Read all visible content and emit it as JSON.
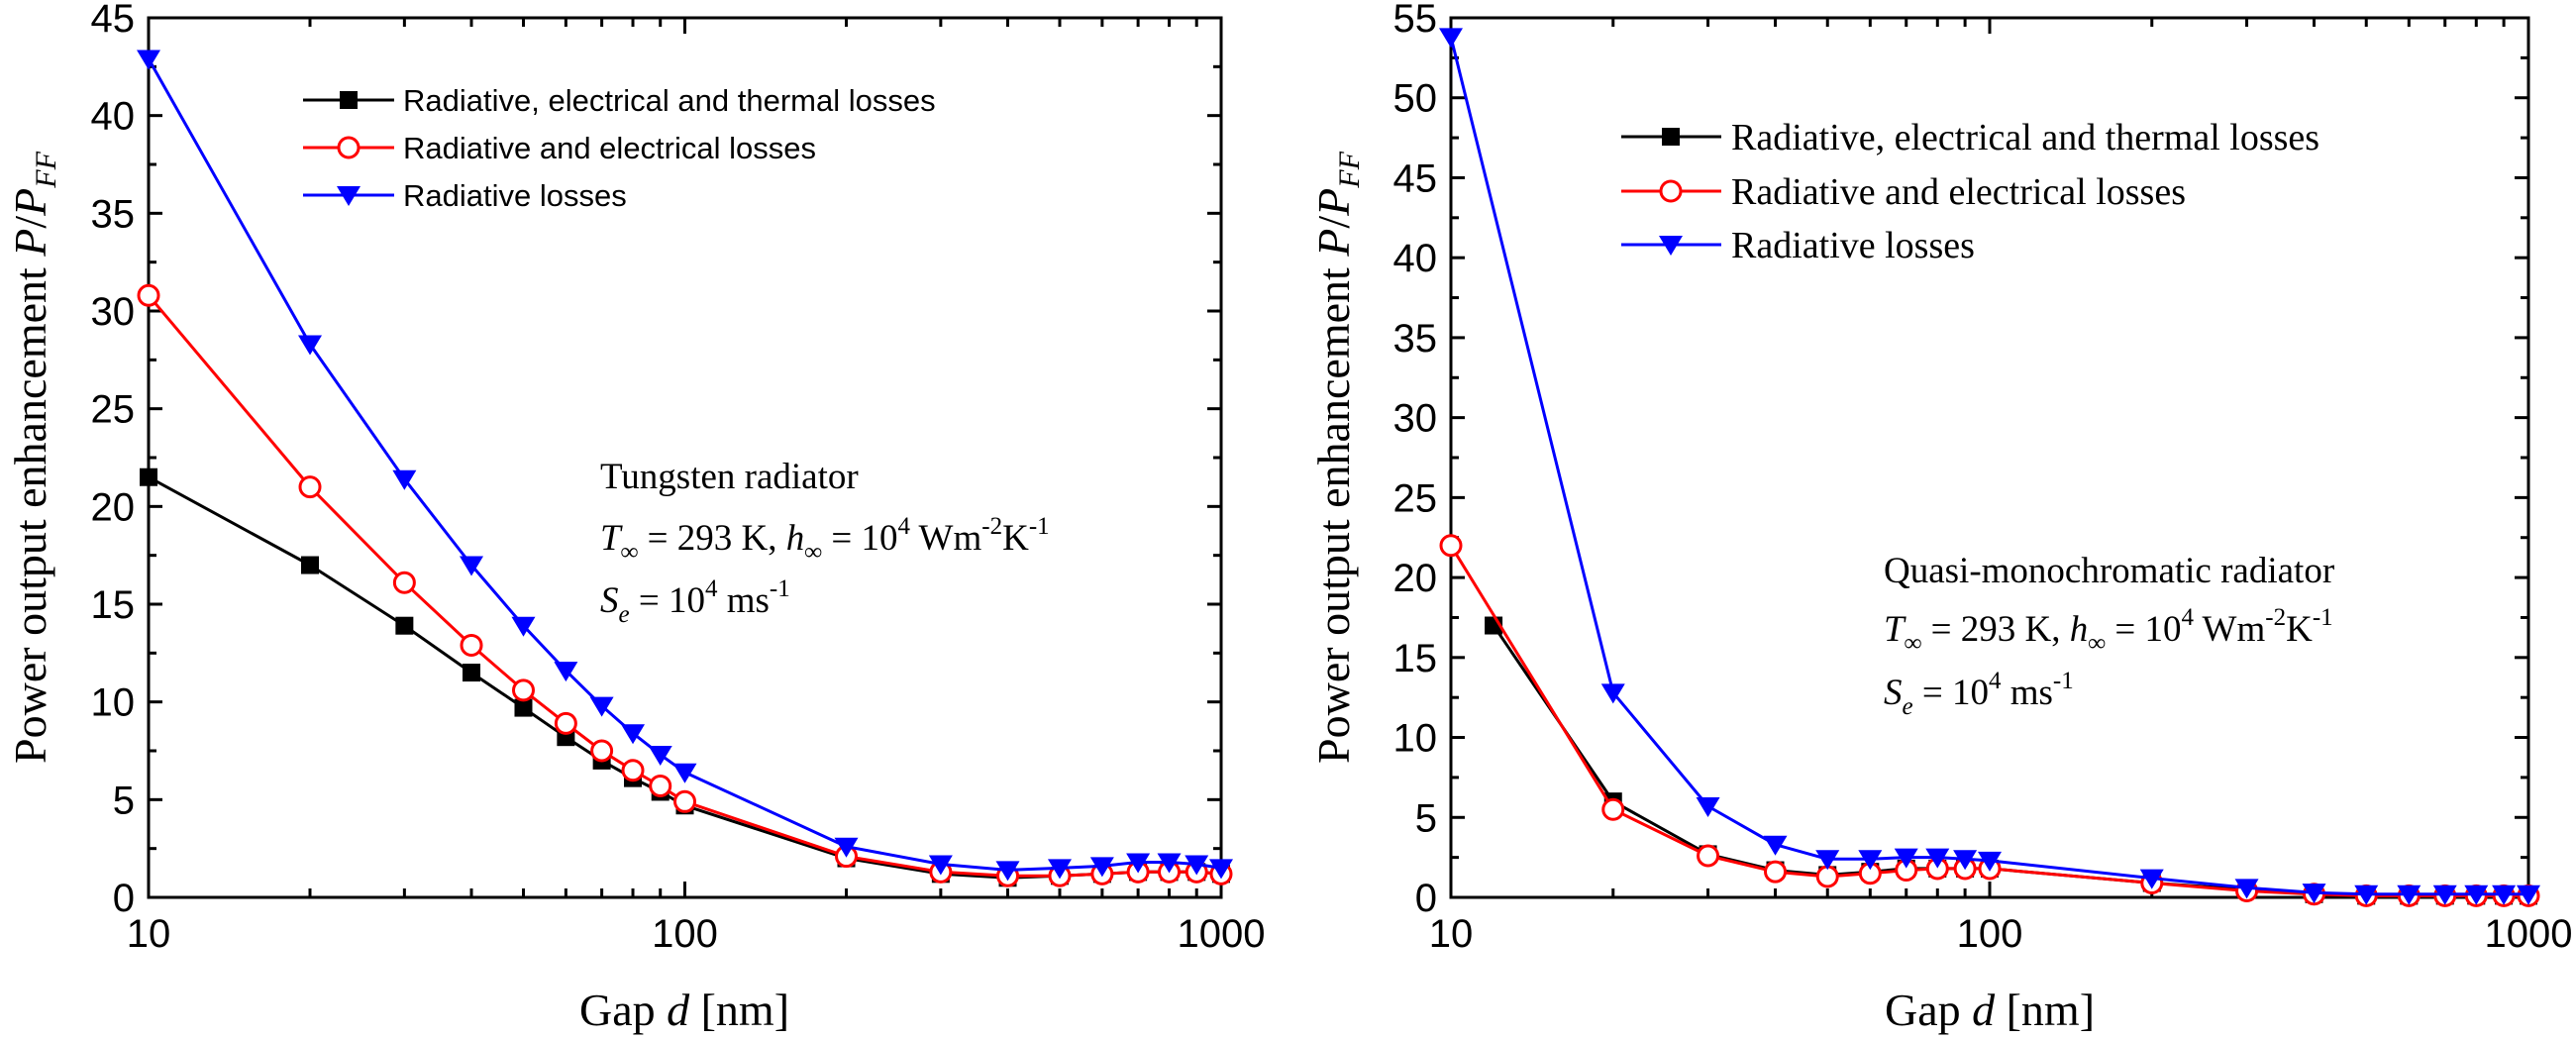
{
  "chart_data": [
    {
      "type": "line",
      "x_scale": "log",
      "xlim": [
        10,
        1000
      ],
      "ylim": [
        0,
        45
      ],
      "x_ticks": [
        "10",
        "100",
        "1000"
      ],
      "y_ticks": [
        "0",
        "5",
        "10",
        "15",
        "20",
        "25",
        "30",
        "35",
        "40",
        "45"
      ],
      "xlabel_pre": "Gap ",
      "xlabel_var": "d",
      "xlabel_post": " [nm]",
      "ylabel_pre": "Power output enhancement ",
      "ylabel_var": "P",
      "ylabel_mid": "/",
      "ylabel_var2": "P",
      "ylabel_sub": "FF",
      "legend_position": "top-left",
      "annotation": {
        "line1": "Tungsten radiator",
        "T": "T",
        "inf_sub": "∞",
        "t_val": " = 293 K, ",
        "h": "h",
        "h_val": " = 10",
        "h_exp": "4",
        "h_unit": " Wm",
        "h_exp2": "-2",
        "h_unit2": "K",
        "h_exp3": "-1",
        "S": "S",
        "S_sub": "e",
        "s_val": " = 10",
        "s_exp": "4",
        "s_unit": " ms",
        "s_exp2": "-1"
      },
      "series": [
        {
          "name": "Radiative, electrical and thermal losses",
          "color": "#000000",
          "marker": "square-filled",
          "x": [
            10,
            20,
            30,
            40,
            50,
            60,
            70,
            80,
            90,
            100,
            200,
            300,
            400,
            500,
            600,
            700,
            800,
            900,
            1000
          ],
          "y": [
            21.5,
            17.0,
            13.9,
            11.5,
            9.7,
            8.2,
            7.0,
            6.1,
            5.4,
            4.7,
            2.0,
            1.2,
            1.0,
            1.1,
            1.2,
            1.3,
            1.3,
            1.3,
            1.2
          ]
        },
        {
          "name": "Radiative and electrical losses",
          "color": "#ff0000",
          "marker": "circle-open",
          "x": [
            10,
            20,
            30,
            40,
            50,
            60,
            70,
            80,
            90,
            100,
            200,
            300,
            400,
            500,
            600,
            700,
            800,
            900,
            1000
          ],
          "y": [
            30.8,
            21.0,
            16.1,
            12.9,
            10.6,
            8.9,
            7.5,
            6.5,
            5.7,
            4.9,
            2.1,
            1.3,
            1.1,
            1.1,
            1.2,
            1.3,
            1.3,
            1.3,
            1.2
          ]
        },
        {
          "name": "Radiative losses",
          "color": "#0000ff",
          "marker": "triangle-down-filled",
          "x": [
            10,
            20,
            30,
            40,
            50,
            60,
            70,
            80,
            90,
            100,
            200,
            300,
            400,
            500,
            600,
            700,
            800,
            900,
            1000
          ],
          "y": [
            42.9,
            28.3,
            21.4,
            17.0,
            13.9,
            11.6,
            9.8,
            8.4,
            7.3,
            6.4,
            2.6,
            1.7,
            1.4,
            1.5,
            1.6,
            1.8,
            1.8,
            1.7,
            1.5
          ]
        }
      ]
    },
    {
      "type": "line",
      "x_scale": "log",
      "xlim": [
        10,
        1000
      ],
      "ylim": [
        0,
        55
      ],
      "x_ticks": [
        "10",
        "100",
        "1000"
      ],
      "y_ticks": [
        "0",
        "5",
        "10",
        "15",
        "20",
        "25",
        "30",
        "35",
        "40",
        "45",
        "50",
        "55"
      ],
      "xlabel_pre": "Gap ",
      "xlabel_var": "d",
      "xlabel_post": " [nm]",
      "ylabel_pre": "Power output enhancement ",
      "ylabel_var": "P",
      "ylabel_mid": "/",
      "ylabel_var2": "P",
      "ylabel_sub": "FF",
      "legend_position": "top-center",
      "annotation": {
        "line1": "Quasi-monochromatic radiator",
        "T": "T",
        "inf_sub": "∞",
        "t_val": " = 293 K, ",
        "h": "h",
        "h_val": " = 10",
        "h_exp": "4",
        "h_unit": " Wm",
        "h_exp2": "-2",
        "h_unit2": "K",
        "h_exp3": "-1",
        "S": "S",
        "S_sub": "e",
        "s_val": " = 10",
        "s_exp": "4",
        "s_unit": " ms",
        "s_exp2": "-1"
      },
      "series": [
        {
          "name": "Radiative, electrical and thermal losses",
          "color": "#000000",
          "marker": "square-filled",
          "x": [
            12,
            20,
            30,
            40,
            50,
            60,
            70,
            80,
            90,
            100,
            200,
            300,
            400,
            500,
            600,
            700,
            800,
            900,
            1000
          ],
          "y": [
            17.0,
            6.0,
            2.7,
            1.7,
            1.4,
            1.6,
            1.8,
            1.8,
            1.8,
            1.8,
            0.9,
            0.5,
            0.2,
            0.1,
            0.1,
            0.1,
            0.1,
            0.1,
            0.1
          ]
        },
        {
          "name": "Radiative and electrical losses",
          "color": "#ff0000",
          "marker": "circle-open",
          "x": [
            10,
            20,
            30,
            40,
            50,
            60,
            70,
            80,
            90,
            100,
            200,
            300,
            400,
            500,
            600,
            700,
            800,
            900,
            1000
          ],
          "y": [
            22.0,
            5.5,
            2.6,
            1.6,
            1.3,
            1.5,
            1.7,
            1.8,
            1.8,
            1.8,
            0.9,
            0.4,
            0.2,
            0.1,
            0.1,
            0.1,
            0.1,
            0.1,
            0.1
          ]
        },
        {
          "name": "Radiative losses",
          "color": "#0000ff",
          "marker": "triangle-down-filled",
          "x": [
            10,
            20,
            30,
            40,
            50,
            60,
            70,
            80,
            90,
            100,
            200,
            300,
            400,
            500,
            600,
            700,
            800,
            900,
            1000
          ],
          "y": [
            53.8,
            12.8,
            5.7,
            3.3,
            2.4,
            2.4,
            2.5,
            2.5,
            2.4,
            2.3,
            1.2,
            0.6,
            0.3,
            0.2,
            0.2,
            0.2,
            0.2,
            0.2,
            0.2
          ]
        }
      ]
    }
  ]
}
